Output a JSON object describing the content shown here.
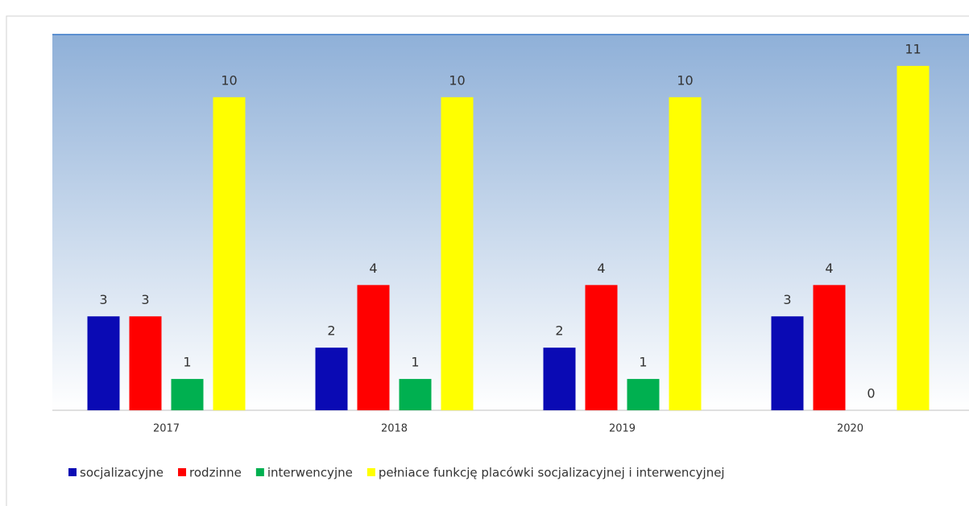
{
  "chart_data": {
    "type": "bar",
    "categories": [
      "2017",
      "2018",
      "2019",
      "2020"
    ],
    "series": [
      {
        "name": "socjalizacyjne",
        "color": "#0a0ab4",
        "values": [
          3,
          2,
          2,
          3
        ]
      },
      {
        "name": "rodzinne",
        "color": "#ff0000",
        "values": [
          3,
          4,
          4,
          4
        ]
      },
      {
        "name": "interwencyjne",
        "color": "#00b050",
        "values": [
          1,
          1,
          1,
          0
        ]
      },
      {
        "name": "pełniace funkcję placówki socjalizacyjnej i interwencyjnej",
        "color": "#ffff00",
        "values": [
          10,
          10,
          10,
          11
        ]
      }
    ],
    "ylim": [
      0,
      12
    ],
    "legend": "bottom"
  }
}
